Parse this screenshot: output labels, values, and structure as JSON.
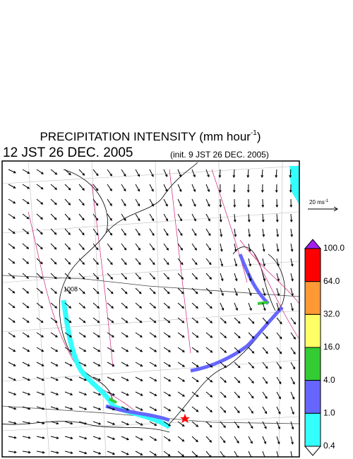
{
  "header": {
    "title": "PRECIPITATION INTENSITY (mm hour",
    "title_superscript": "-1",
    "title_close": ")",
    "valid_time": "12 JST 26 DEC. 2005",
    "init_time": "(init. 9 JST 26 DEC. 2005)"
  },
  "map": {
    "contour_label": "1008"
  },
  "wind_scale": {
    "label": "20 ms",
    "superscript": "-1"
  },
  "colorbar": {
    "over_color": "#a020f0",
    "under_color": "#ffffff",
    "levels": [
      {
        "label": "100.0",
        "color": "#ff0000"
      },
      {
        "label": "64.0",
        "color": "#ff9933"
      },
      {
        "label": "32.0",
        "color": "#ffff66"
      },
      {
        "label": "16.0",
        "color": "#33cc33"
      },
      {
        "label": "4.0",
        "color": "#6666ff"
      },
      {
        "label": "1.0",
        "color": "#33ffff"
      },
      {
        "label": "0.4"
      }
    ]
  }
}
